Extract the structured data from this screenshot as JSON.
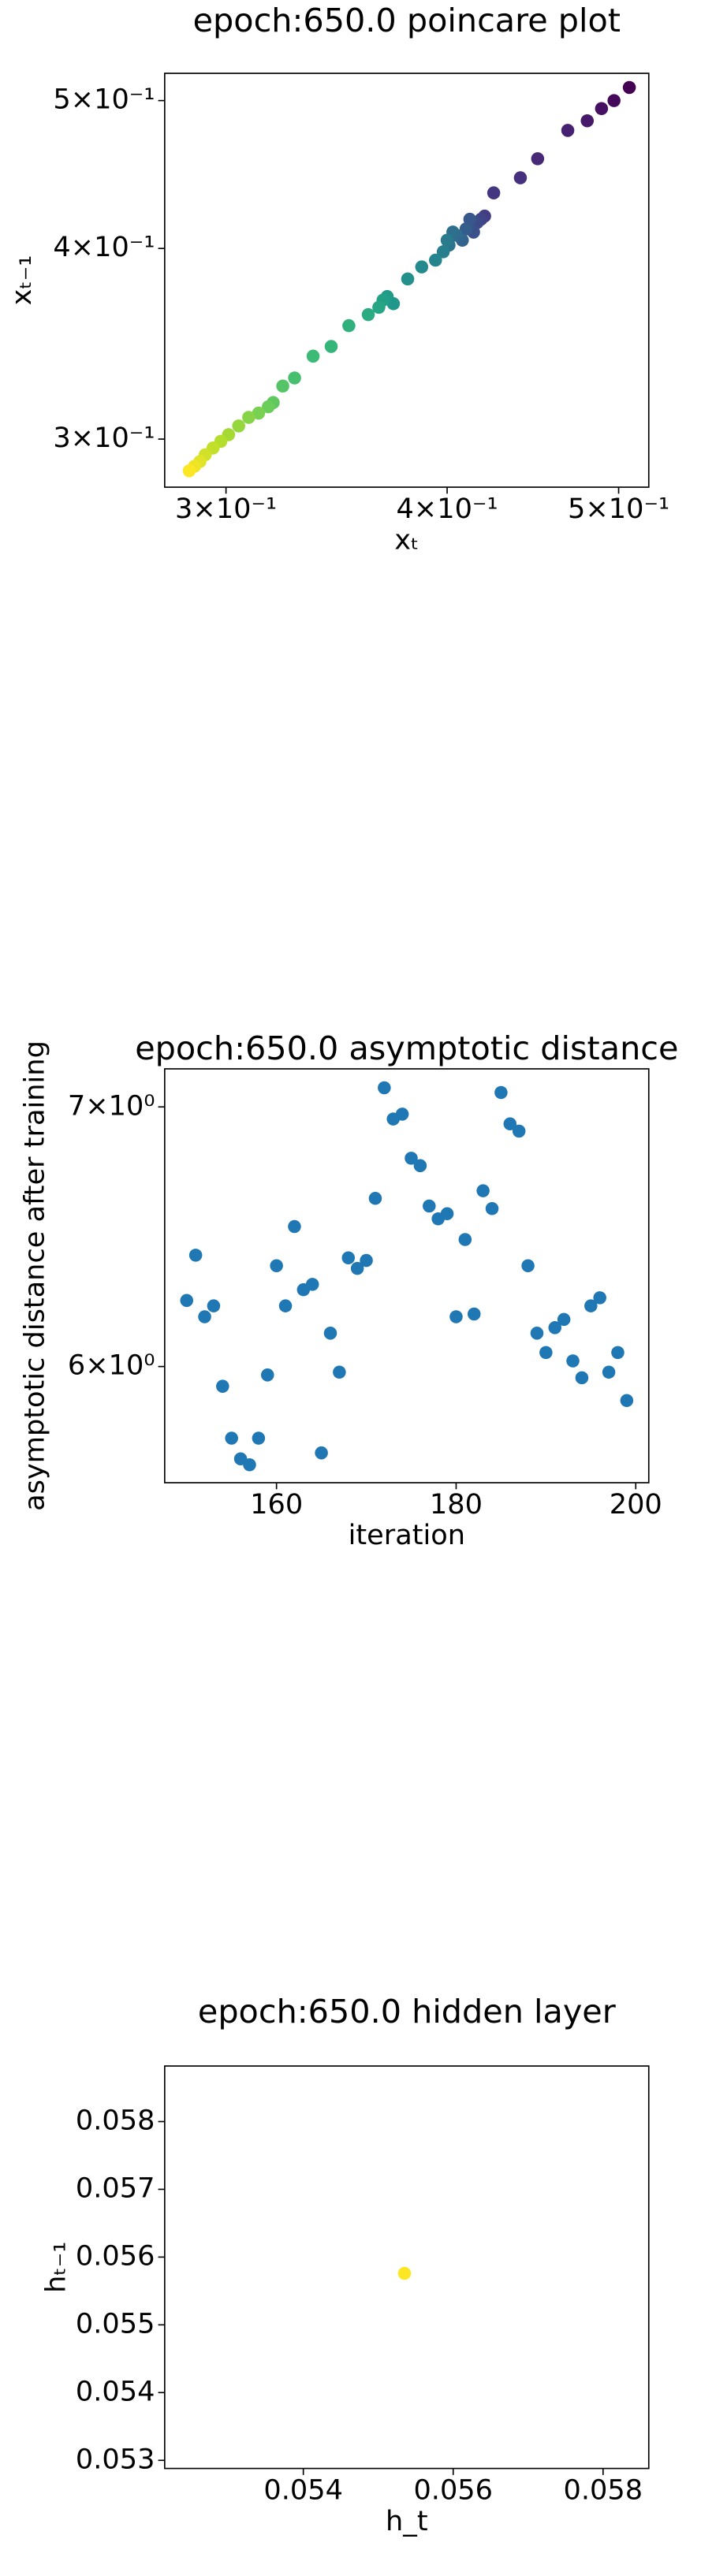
{
  "chart_data": [
    {
      "type": "scatter",
      "title": "epoch:650.0 poincare plot",
      "xlabel": "xₜ",
      "ylabel": "xₜ₋₁",
      "xscale": "log",
      "yscale": "log",
      "colormap": "viridis",
      "x": [
        0.507,
        0.497,
        0.489,
        0.48,
        0.468,
        0.45,
        0.44,
        0.425,
        0.42,
        0.418,
        0.416,
        0.414,
        0.412,
        0.41,
        0.408,
        0.405,
        0.403,
        0.401,
        0.4,
        0.398,
        0.394,
        0.387,
        0.38,
        0.373,
        0.37,
        0.368,
        0.366,
        0.361,
        0.352,
        0.344,
        0.336,
        0.328,
        0.323,
        0.319,
        0.317,
        0.313,
        0.309,
        0.305,
        0.301,
        0.298,
        0.295,
        0.292,
        0.29,
        0.288,
        0.286
      ],
      "values": [
        0.51,
        0.5,
        0.494,
        0.485,
        0.478,
        0.458,
        0.445,
        0.435,
        0.42,
        0.418,
        0.416,
        0.41,
        0.418,
        0.412,
        0.405,
        0.408,
        0.41,
        0.402,
        0.405,
        0.398,
        0.393,
        0.389,
        0.382,
        0.368,
        0.372,
        0.37,
        0.366,
        0.362,
        0.356,
        0.345,
        0.34,
        0.329,
        0.325,
        0.317,
        0.315,
        0.312,
        0.31,
        0.306,
        0.302,
        0.299,
        0.296,
        0.293,
        0.29,
        0.288,
        0.286
      ],
      "xlim": [
        0.277,
        0.52
      ],
      "ylim": [
        0.279,
        0.521
      ],
      "xticks": [
        {
          "value": 0.3,
          "label": "3×10⁻¹"
        },
        {
          "value": 0.4,
          "label": "4×10⁻¹"
        },
        {
          "value": 0.5,
          "label": "5×10⁻¹"
        }
      ],
      "yticks": [
        {
          "value": 0.3,
          "label": "3×10⁻¹"
        },
        {
          "value": 0.4,
          "label": "4×10⁻¹"
        },
        {
          "value": 0.5,
          "label": "5×10⁻¹"
        }
      ]
    },
    {
      "type": "scatter",
      "title": "epoch:650.0 asymptotic distance",
      "xlabel": "iteration",
      "ylabel": "asymptotic distance after training",
      "yscale": "log",
      "color": "#1f77b4",
      "x": [
        150,
        151,
        152,
        153,
        154,
        155,
        156,
        157,
        158,
        159,
        160,
        161,
        162,
        163,
        164,
        165,
        166,
        167,
        168,
        169,
        170,
        171,
        172,
        173,
        174,
        175,
        176,
        177,
        178,
        179,
        180,
        181,
        182,
        183,
        184,
        185,
        186,
        187,
        188,
        189,
        190,
        191,
        192,
        193,
        194,
        195,
        196,
        197,
        198,
        199
      ],
      "values": [
        6.24,
        6.41,
        6.18,
        6.22,
        5.93,
        5.75,
        5.68,
        5.66,
        5.75,
        5.97,
        6.37,
        6.22,
        6.52,
        6.28,
        6.3,
        5.7,
        6.12,
        5.98,
        6.4,
        6.36,
        6.39,
        6.63,
        7.08,
        6.95,
        6.97,
        6.79,
        6.76,
        6.6,
        6.55,
        6.57,
        6.18,
        6.47,
        6.19,
        6.66,
        6.59,
        7.06,
        6.93,
        6.9,
        6.37,
        6.12,
        6.05,
        6.14,
        6.17,
        6.02,
        5.96,
        6.22,
        6.25,
        5.98,
        6.05,
        5.88
      ],
      "xlim": [
        147.55,
        201.45
      ],
      "ylim": [
        5.6,
        7.16
      ],
      "xticks": [
        160,
        180,
        200
      ],
      "yticks": [
        {
          "value": 6,
          "label": "6×10⁰"
        },
        {
          "value": 7,
          "label": "7×10⁰"
        }
      ]
    },
    {
      "type": "scatter",
      "title": "epoch:650.0 hidden layer",
      "xlabel": "h_t",
      "ylabel": "hₜ₋₁",
      "color": "#fde725",
      "x": [
        0.05535
      ],
      "values": [
        0.05576
      ],
      "xlim": [
        0.05215,
        0.05861
      ],
      "ylim": [
        0.05288,
        0.05882
      ],
      "xticks": [
        0.054,
        0.056,
        0.058
      ],
      "yticks": [
        0.053,
        0.054,
        0.055,
        0.056,
        0.057,
        0.058
      ]
    }
  ]
}
